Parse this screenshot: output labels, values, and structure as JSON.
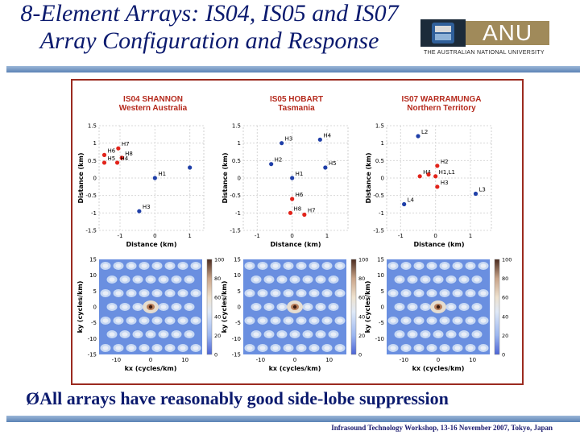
{
  "slide": {
    "title_line1": "8-Element Arrays: IS04, IS05 and IS07",
    "title_line2": "Array Configuration and Response",
    "logo_text": "ANU",
    "logo_caption": "THE AUSTRALIAN NATIONAL UNIVERSITY",
    "bullet": "ØAll arrays have reasonably good side-lobe suppression",
    "footer": "Infrasound Technology Workshop, 13-16 November 2007, Tokyo, Japan"
  },
  "colors": {
    "title": "#0b1a6e",
    "panel_title": "#b52a1d",
    "point_red": "#e2231a",
    "point_blue": "#1f3fa8",
    "frame": "#9b2a1f"
  },
  "chart_data": [
    {
      "type": "scatter",
      "title": "IS04 SHANNON",
      "subtitle": "Western Australia",
      "xlabel": "Distance (km)",
      "ylabel": "Distance (km)",
      "xticks": [
        "-1",
        "0",
        "1"
      ],
      "yticks": [
        "1.5",
        "1",
        "0.5",
        "0",
        "-0.5",
        "-1",
        "-1.5"
      ],
      "xlim": [
        -1.6,
        1.4
      ],
      "ylim": [
        -1.5,
        1.5
      ],
      "points": [
        {
          "label": "H7",
          "x": -1.05,
          "y": 0.85,
          "color": "red"
        },
        {
          "label": "H6",
          "x": -1.45,
          "y": 0.66,
          "color": "red"
        },
        {
          "label": "H8",
          "x": -0.95,
          "y": 0.58,
          "color": "red"
        },
        {
          "label": "H5",
          "x": -1.45,
          "y": 0.44,
          "color": "red"
        },
        {
          "label": "H4",
          "x": -1.08,
          "y": 0.44,
          "color": "red"
        },
        {
          "label": "H1",
          "x": 0.0,
          "y": 0.0,
          "color": "blue"
        },
        {
          "label": "",
          "x": 1.0,
          "y": 0.3,
          "color": "blue"
        },
        {
          "label": "H3",
          "x": -0.45,
          "y": -0.95,
          "color": "blue"
        }
      ]
    },
    {
      "type": "scatter",
      "title": "IS05 HOBART",
      "subtitle": "Tasmania",
      "xlabel": "Distance (km)",
      "ylabel": "Distance (km)",
      "xticks": [
        "-1",
        "0",
        "1"
      ],
      "yticks": [
        "1.5",
        "1",
        "0.5",
        "0",
        "-0.5",
        "-1",
        "-1.5"
      ],
      "xlim": [
        -1.4,
        1.6
      ],
      "ylim": [
        -1.5,
        1.5
      ],
      "points": [
        {
          "label": "H3",
          "x": -0.3,
          "y": 1.0,
          "color": "blue"
        },
        {
          "label": "H4",
          "x": 0.8,
          "y": 1.1,
          "color": "blue"
        },
        {
          "label": "H2",
          "x": -0.6,
          "y": 0.4,
          "color": "blue"
        },
        {
          "label": "H5",
          "x": 0.95,
          "y": 0.3,
          "color": "blue"
        },
        {
          "label": "H1",
          "x": 0.0,
          "y": 0.0,
          "color": "blue"
        },
        {
          "label": "H6",
          "x": 0.0,
          "y": -0.6,
          "color": "red"
        },
        {
          "label": "H8",
          "x": -0.05,
          "y": -1.0,
          "color": "red"
        },
        {
          "label": "H7",
          "x": 0.35,
          "y": -1.05,
          "color": "red"
        }
      ]
    },
    {
      "type": "scatter",
      "title": "IS07 WARRAMUNGA",
      "subtitle": "Northern Territory",
      "xlabel": "Distance (km)",
      "ylabel": "Distance (km)",
      "xticks": [
        "-1",
        "0",
        "1"
      ],
      "yticks": [
        "1.5",
        "1",
        "0.5",
        "0",
        "-0.5",
        "-1",
        "-1.5"
      ],
      "xlim": [
        -1.4,
        1.6
      ],
      "ylim": [
        -1.5,
        1.5
      ],
      "points": [
        {
          "label": "L2",
          "x": -0.5,
          "y": 1.2,
          "color": "blue"
        },
        {
          "label": "H2",
          "x": 0.05,
          "y": 0.35,
          "color": "red"
        },
        {
          "label": "H4",
          "x": -0.45,
          "y": 0.05,
          "color": "red"
        },
        {
          "label": "H1,L1",
          "x": 0.0,
          "y": 0.05,
          "color": "red"
        },
        {
          "label": "H3",
          "x": 0.05,
          "y": -0.25,
          "color": "red"
        },
        {
          "label": "L4",
          "x": -0.9,
          "y": -0.75,
          "color": "blue"
        },
        {
          "label": "L3",
          "x": 1.15,
          "y": -0.45,
          "color": "blue"
        },
        {
          "label": "",
          "x": -0.2,
          "y": 0.1,
          "color": "red"
        }
      ]
    },
    {
      "type": "heatmap",
      "xlabel": "kx (cycles/km)",
      "ylabel": "ky (cycles/km)",
      "xticks": [
        "-10",
        "0",
        "10"
      ],
      "yticks": [
        "15",
        "10",
        "5",
        "0",
        "-5",
        "-10",
        "-15"
      ],
      "colorbar_ticks": [
        "100",
        "80",
        "60",
        "40",
        "20",
        "0"
      ],
      "xlim": [
        -15,
        15
      ],
      "ylim": [
        -15,
        15
      ],
      "zlim": [
        0,
        100
      ]
    },
    {
      "type": "heatmap",
      "xlabel": "kx (cycles/km)",
      "ylabel": "ky (cycles/km)",
      "xticks": [
        "-10",
        "0",
        "10"
      ],
      "yticks": [
        "15",
        "10",
        "5",
        "0",
        "-5",
        "-10",
        "-15"
      ],
      "colorbar_ticks": [
        "100",
        "80",
        "60",
        "40",
        "20",
        "0"
      ],
      "xlim": [
        -15,
        15
      ],
      "ylim": [
        -15,
        15
      ],
      "zlim": [
        0,
        100
      ]
    },
    {
      "type": "heatmap",
      "xlabel": "kx (cycles/km)",
      "ylabel": "ky (cycles/km)",
      "xticks": [
        "-10",
        "0",
        "10"
      ],
      "yticks": [
        "15",
        "10",
        "5",
        "0",
        "-5",
        "-10"
      ],
      "colorbar_ticks": [
        "100",
        "80",
        "60",
        "40",
        "20",
        "0"
      ],
      "xlim": [
        -15,
        15
      ],
      "ylim": [
        -15,
        15
      ],
      "zlim": [
        0,
        100
      ]
    }
  ]
}
